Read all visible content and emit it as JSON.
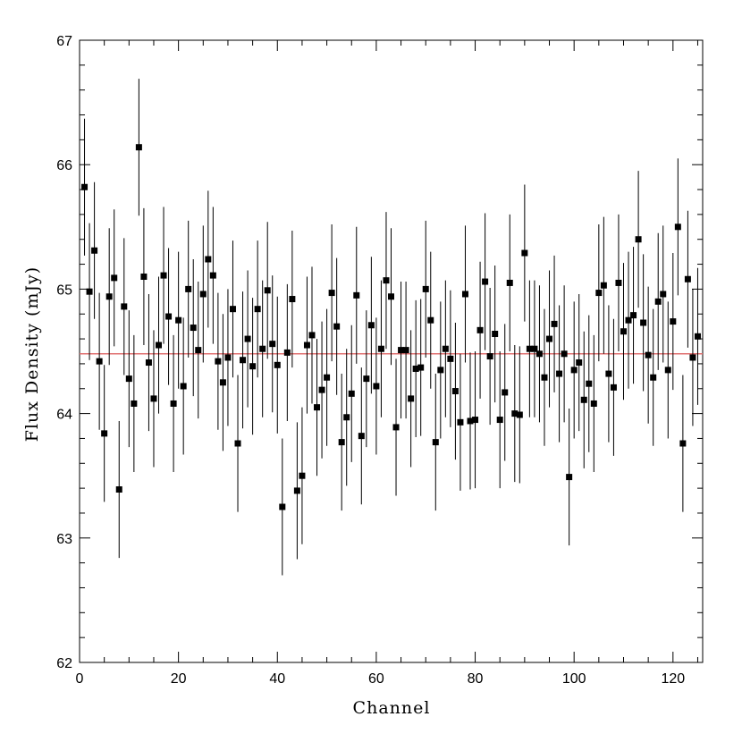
{
  "chart_data": {
    "type": "scatter",
    "title": "",
    "xlabel": "Channel",
    "ylabel": "Flux Density (mJy)",
    "xlim": [
      0,
      126
    ],
    "ylim": [
      62,
      67
    ],
    "x_ticks": [
      "0",
      "20",
      "40",
      "60",
      "80",
      "100",
      "120"
    ],
    "y_ticks": [
      "62",
      "63",
      "64",
      "65",
      "66",
      "67"
    ],
    "grid": false,
    "reference_line": {
      "y": 64.48,
      "color": "#e07070"
    },
    "marker_color": "#000000",
    "series": [
      {
        "x": [
          1,
          2,
          3,
          4,
          5,
          6,
          7,
          8,
          9,
          10,
          11,
          12,
          13,
          14,
          15,
          16,
          17,
          18,
          19,
          20,
          21,
          22,
          23,
          24,
          25,
          26,
          27,
          28,
          29,
          30,
          31,
          32,
          33,
          34,
          35,
          36,
          37,
          38,
          39,
          40,
          41,
          42,
          43,
          44,
          45,
          46,
          47,
          48,
          49,
          50,
          51,
          52,
          53,
          54,
          55,
          56,
          57,
          58,
          59,
          60,
          61,
          62,
          63,
          64,
          65,
          66,
          67,
          68,
          69,
          70,
          71,
          72,
          73,
          74,
          75,
          76,
          77,
          78,
          79,
          80,
          81,
          82,
          83,
          84,
          85,
          86,
          87,
          88,
          89,
          90,
          91,
          92,
          93,
          94,
          95,
          96,
          97,
          98,
          99,
          100,
          101,
          102,
          103,
          104,
          105,
          106,
          107,
          108,
          109,
          110,
          111,
          112,
          113,
          114,
          115,
          116,
          117,
          118,
          119,
          120,
          121,
          122,
          123,
          124,
          125
        ],
        "y": [
          65.82,
          64.98,
          65.31,
          64.42,
          63.84,
          64.94,
          65.09,
          63.39,
          64.86,
          64.28,
          64.08,
          66.14,
          65.1,
          64.41,
          64.12,
          64.55,
          65.11,
          64.78,
          64.08,
          64.75,
          64.22,
          65.0,
          64.69,
          64.51,
          64.96,
          65.24,
          65.11,
          64.42,
          64.25,
          64.45,
          64.84,
          63.76,
          64.43,
          64.6,
          64.38,
          64.84,
          64.52,
          64.99,
          64.56,
          64.39,
          63.25,
          64.49,
          64.92,
          63.38,
          63.5,
          64.55,
          64.63,
          64.05,
          64.19,
          64.29,
          64.97,
          64.7,
          63.77,
          63.97,
          64.16,
          64.95,
          63.82,
          64.28,
          64.71,
          64.22,
          64.52,
          65.07,
          64.94,
          63.89,
          64.51,
          64.51,
          64.12,
          64.36,
          64.37,
          65.0,
          64.75,
          63.77,
          64.35,
          64.52,
          64.44,
          64.18,
          63.93,
          64.96,
          63.94,
          63.95,
          64.67,
          65.06,
          64.46,
          64.64,
          63.95,
          64.17,
          65.05,
          64.0,
          63.99,
          65.29,
          64.52,
          64.52,
          64.48,
          64.29,
          64.6,
          64.72,
          64.32,
          64.48,
          63.49,
          64.35,
          64.41,
          64.11,
          64.24,
          64.08,
          64.97,
          65.03,
          64.32,
          64.21,
          65.05,
          64.66,
          64.75,
          64.79,
          65.4,
          64.73,
          64.47,
          64.29,
          64.9,
          64.96,
          64.35,
          64.74,
          65.5,
          63.76,
          65.08,
          64.45,
          64.62
        ],
        "err": [
          0.55,
          0.55,
          0.55,
          0.55,
          0.55,
          0.55,
          0.55,
          0.55,
          0.55,
          0.55,
          0.55,
          0.55,
          0.55,
          0.55,
          0.55,
          0.55,
          0.55,
          0.55,
          0.55,
          0.55,
          0.55,
          0.55,
          0.55,
          0.55,
          0.55,
          0.55,
          0.55,
          0.55,
          0.55,
          0.55,
          0.55,
          0.55,
          0.55,
          0.55,
          0.55,
          0.55,
          0.55,
          0.55,
          0.55,
          0.55,
          0.55,
          0.55,
          0.55,
          0.55,
          0.55,
          0.55,
          0.55,
          0.55,
          0.55,
          0.55,
          0.55,
          0.55,
          0.55,
          0.55,
          0.55,
          0.55,
          0.55,
          0.55,
          0.55,
          0.55,
          0.55,
          0.55,
          0.55,
          0.55,
          0.55,
          0.55,
          0.55,
          0.55,
          0.55,
          0.55,
          0.55,
          0.55,
          0.55,
          0.55,
          0.55,
          0.55,
          0.55,
          0.55,
          0.55,
          0.55,
          0.55,
          0.55,
          0.55,
          0.55,
          0.55,
          0.55,
          0.55,
          0.55,
          0.55,
          0.55,
          0.55,
          0.55,
          0.55,
          0.55,
          0.55,
          0.55,
          0.55,
          0.55,
          0.55,
          0.55,
          0.55,
          0.55,
          0.55,
          0.55,
          0.55,
          0.55,
          0.55,
          0.55,
          0.55,
          0.55,
          0.55,
          0.55,
          0.55,
          0.55,
          0.55,
          0.55,
          0.55,
          0.55,
          0.55,
          0.55,
          0.55,
          0.55,
          0.55,
          0.55,
          0.55
        ]
      }
    ]
  }
}
